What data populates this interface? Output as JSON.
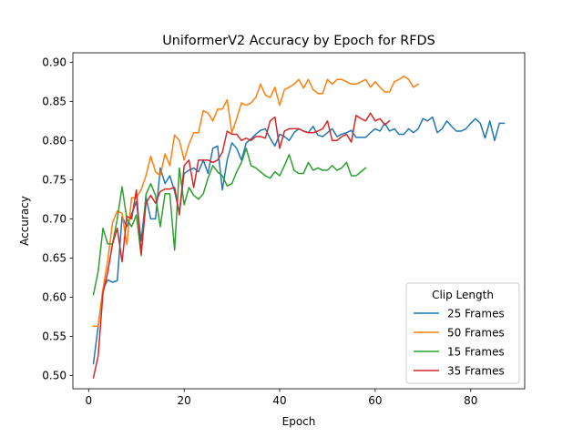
{
  "chart_data": {
    "type": "line",
    "title": "UniformerV2 Accuracy by Epoch for RFDS",
    "xlabel": "Epoch",
    "ylabel": "Accuracy",
    "xlim": [
      -3.3,
      91.3
    ],
    "ylim": [
      0.483,
      0.912
    ],
    "xticks": [
      "0",
      "20",
      "40",
      "60",
      "80"
    ],
    "yticks": [
      "0.50",
      "0.55",
      "0.60",
      "0.65",
      "0.70",
      "0.75",
      "0.80",
      "0.85",
      "0.90"
    ],
    "grid": false,
    "legend": {
      "title": "Clip Length",
      "placement": "lower-right",
      "entries": [
        "25 Frames",
        "50 Frames",
        "15 Frames",
        "35 Frames"
      ]
    },
    "series": [
      {
        "name": "25 Frames",
        "color": "#1f77b4",
        "x": [
          1,
          2,
          3,
          4,
          5,
          6,
          7,
          8,
          9,
          10,
          11,
          12,
          13,
          14,
          15,
          16,
          17,
          18,
          19,
          20,
          21,
          22,
          23,
          24,
          25,
          26,
          27,
          28,
          29,
          30,
          31,
          32,
          33,
          34,
          35,
          36,
          37,
          38,
          39,
          40,
          41,
          42,
          43,
          44,
          45,
          46,
          47,
          48,
          49,
          50,
          51,
          52,
          53,
          54,
          55,
          56,
          57,
          58,
          59,
          60,
          61,
          62,
          63,
          64,
          65,
          66,
          67,
          68,
          69,
          70,
          71,
          72,
          73,
          74,
          75,
          76,
          77,
          78,
          79,
          80,
          81,
          82,
          83,
          84,
          85,
          86,
          87
        ],
        "y": [
          0.515,
          0.563,
          0.61,
          0.622,
          0.619,
          0.621,
          0.703,
          0.69,
          0.706,
          0.722,
          0.672,
          0.728,
          0.7,
          0.7,
          0.765,
          0.745,
          0.755,
          0.735,
          0.708,
          0.758,
          0.762,
          0.765,
          0.76,
          0.775,
          0.758,
          0.79,
          0.793,
          0.737,
          0.775,
          0.797,
          0.79,
          0.775,
          0.797,
          0.802,
          0.808,
          0.813,
          0.815,
          0.803,
          0.793,
          0.808,
          0.805,
          0.8,
          0.81,
          0.815,
          0.812,
          0.81,
          0.818,
          0.807,
          0.805,
          0.81,
          0.815,
          0.805,
          0.808,
          0.81,
          0.813,
          0.804,
          0.804,
          0.804,
          0.81,
          0.815,
          0.812,
          0.822,
          0.812,
          0.815,
          0.808,
          0.808,
          0.815,
          0.81,
          0.815,
          0.828,
          0.825,
          0.83,
          0.81,
          0.815,
          0.825,
          0.818,
          0.812,
          0.812,
          0.815,
          0.822,
          0.828,
          0.822,
          0.803,
          0.825,
          0.8,
          0.822,
          0.822
        ]
      },
      {
        "name": "50 Frames",
        "color": "#ff7f0e",
        "x": [
          1,
          2,
          3,
          4,
          5,
          6,
          7,
          8,
          9,
          10,
          11,
          12,
          13,
          14,
          15,
          16,
          17,
          18,
          19,
          20,
          21,
          22,
          23,
          24,
          25,
          26,
          27,
          28,
          29,
          30,
          31,
          32,
          33,
          34,
          35,
          36,
          37,
          38,
          39,
          40,
          41,
          42,
          43,
          44,
          45,
          46,
          47,
          48,
          49,
          50,
          51,
          52,
          53,
          54,
          55,
          56,
          57,
          58,
          59,
          60,
          61,
          62,
          63,
          64,
          65,
          66,
          67,
          68,
          69
        ],
        "y": [
          0.563,
          0.563,
          0.61,
          0.647,
          0.695,
          0.71,
          0.707,
          0.667,
          0.727,
          0.727,
          0.737,
          0.755,
          0.78,
          0.76,
          0.755,
          0.783,
          0.768,
          0.807,
          0.8,
          0.775,
          0.795,
          0.81,
          0.81,
          0.838,
          0.835,
          0.825,
          0.84,
          0.84,
          0.852,
          0.81,
          0.828,
          0.848,
          0.845,
          0.848,
          0.855,
          0.872,
          0.858,
          0.855,
          0.868,
          0.845,
          0.865,
          0.868,
          0.872,
          0.878,
          0.867,
          0.878,
          0.865,
          0.86,
          0.86,
          0.878,
          0.872,
          0.878,
          0.878,
          0.875,
          0.872,
          0.872,
          0.875,
          0.878,
          0.868,
          0.875,
          0.868,
          0.862,
          0.862,
          0.875,
          0.878,
          0.882,
          0.878,
          0.868,
          0.872
        ]
      },
      {
        "name": "15 Frames",
        "color": "#2ca02c",
        "x": [
          1,
          2,
          3,
          4,
          5,
          6,
          7,
          8,
          9,
          10,
          11,
          12,
          13,
          14,
          15,
          16,
          17,
          18,
          19,
          20,
          21,
          22,
          23,
          24,
          25,
          26,
          27,
          28,
          29,
          30,
          31,
          32,
          33,
          34,
          35,
          36,
          37,
          38,
          39,
          40,
          41,
          42,
          43,
          44,
          45,
          46,
          47,
          48,
          49,
          50,
          51,
          52,
          53,
          54,
          55,
          56,
          57,
          58
        ],
        "y": [
          0.603,
          0.633,
          0.688,
          0.668,
          0.668,
          0.7,
          0.741,
          0.7,
          0.69,
          0.705,
          0.653,
          0.731,
          0.745,
          0.73,
          0.69,
          0.732,
          0.732,
          0.66,
          0.765,
          0.718,
          0.74,
          0.73,
          0.725,
          0.732,
          0.752,
          0.768,
          0.76,
          0.755,
          0.742,
          0.745,
          0.76,
          0.772,
          0.79,
          0.768,
          0.765,
          0.76,
          0.755,
          0.752,
          0.76,
          0.755,
          0.768,
          0.782,
          0.762,
          0.758,
          0.758,
          0.772,
          0.762,
          0.765,
          0.762,
          0.762,
          0.768,
          0.762,
          0.765,
          0.772,
          0.755,
          0.755,
          0.76,
          0.765
        ]
      },
      {
        "name": "35 Frames",
        "color": "#d62728",
        "x": [
          1,
          2,
          3,
          4,
          5,
          6,
          7,
          8,
          9,
          10,
          11,
          12,
          13,
          14,
          15,
          16,
          17,
          18,
          19,
          20,
          21,
          22,
          23,
          24,
          25,
          26,
          27,
          28,
          29,
          30,
          31,
          32,
          33,
          34,
          35,
          36,
          37,
          38,
          39,
          40,
          41,
          42,
          43,
          44,
          45,
          46,
          47,
          48,
          49,
          50,
          51,
          52,
          53,
          54,
          55,
          56,
          57,
          58,
          59,
          60,
          61,
          62,
          63
        ],
        "y": [
          0.497,
          0.525,
          0.605,
          0.632,
          0.668,
          0.688,
          0.645,
          0.703,
          0.7,
          0.737,
          0.655,
          0.72,
          0.73,
          0.72,
          0.735,
          0.738,
          0.738,
          0.74,
          0.705,
          0.768,
          0.775,
          0.74,
          0.775,
          0.775,
          0.775,
          0.772,
          0.775,
          0.785,
          0.812,
          0.808,
          0.808,
          0.8,
          0.803,
          0.8,
          0.805,
          0.805,
          0.803,
          0.825,
          0.83,
          0.79,
          0.812,
          0.815,
          0.815,
          0.815,
          0.812,
          0.81,
          0.81,
          0.812,
          0.815,
          0.825,
          0.8,
          0.8,
          0.805,
          0.808,
          0.798,
          0.832,
          0.828,
          0.825,
          0.835,
          0.825,
          0.828,
          0.82,
          0.825
        ]
      }
    ]
  }
}
